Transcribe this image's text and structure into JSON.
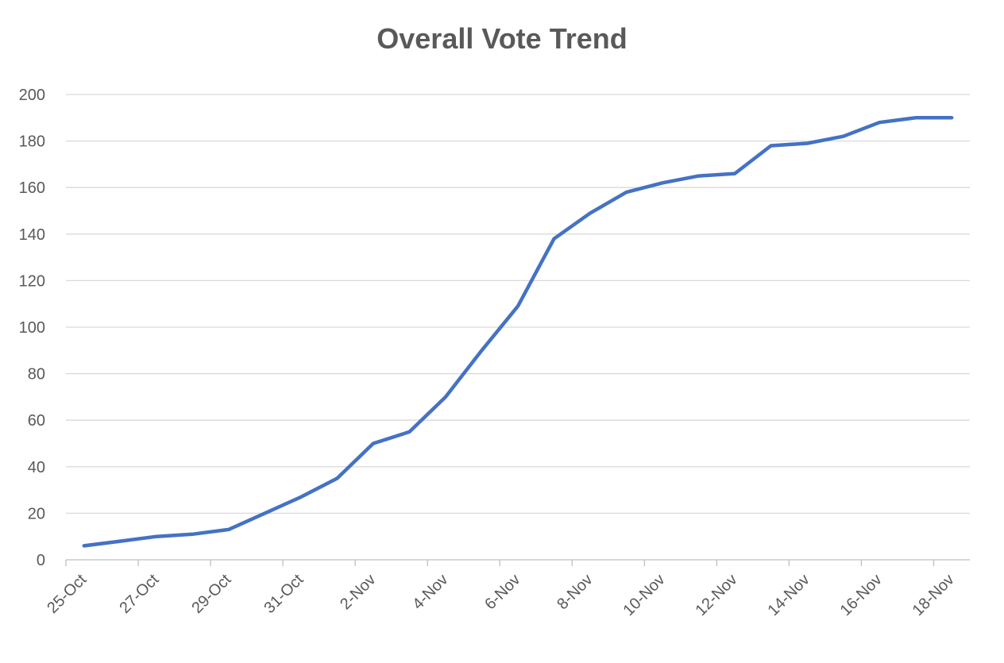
{
  "chart_data": {
    "type": "line",
    "title": "Overall Vote Trend",
    "xlabel": "",
    "ylabel": "",
    "ylim": [
      0,
      200
    ],
    "yticks": [
      0,
      20,
      40,
      60,
      80,
      100,
      120,
      140,
      160,
      180,
      200
    ],
    "xlim": [
      "25-Oct",
      "18-Nov"
    ],
    "xtick_labels": [
      "25-Oct",
      "27-Oct",
      "29-Oct",
      "31-Oct",
      "2-Nov",
      "4-Nov",
      "6-Nov",
      "8-Nov",
      "10-Nov",
      "12-Nov",
      "14-Nov",
      "16-Nov",
      "18-Nov"
    ],
    "grid": true,
    "legend": "none",
    "series": [
      {
        "color": "#4472C4",
        "x": [
          "25-Oct",
          "26-Oct",
          "27-Oct",
          "28-Oct",
          "29-Oct",
          "30-Oct",
          "31-Oct",
          "1-Nov",
          "2-Nov",
          "3-Nov",
          "4-Nov",
          "5-Nov",
          "6-Nov",
          "7-Nov",
          "8-Nov",
          "9-Nov",
          "10-Nov",
          "11-Nov",
          "12-Nov",
          "13-Nov",
          "14-Nov",
          "15-Nov",
          "16-Nov",
          "17-Nov",
          "18-Nov"
        ],
        "values": [
          6,
          8,
          10,
          11,
          13,
          20,
          27,
          35,
          50,
          55,
          70,
          90,
          109,
          138,
          149,
          158,
          162,
          165,
          166,
          178,
          179,
          182,
          188,
          190,
          190
        ]
      }
    ]
  }
}
